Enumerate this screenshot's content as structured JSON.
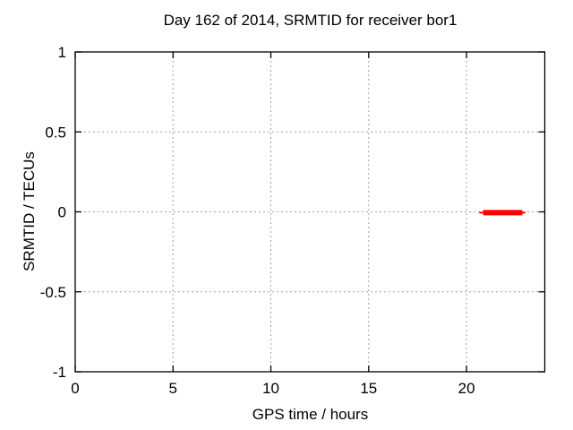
{
  "page": {
    "background_color": "#ffffff",
    "text_color": "#000000"
  },
  "chart_data": {
    "type": "line",
    "title": "Day 162 of 2014, SRMTID for receiver bor1",
    "xlabel": "GPS time / hours",
    "ylabel": "SRMTID / TECUs",
    "xlim": [
      0,
      24
    ],
    "ylim": [
      -1,
      1
    ],
    "xticks": [
      0,
      5,
      10,
      15,
      20
    ],
    "xtick_labels": [
      "0",
      "5",
      "10",
      "15",
      "20"
    ],
    "yticks": [
      -1,
      -0.5,
      0,
      0.5,
      1
    ],
    "ytick_labels": [
      "-1",
      "-0.5",
      "0",
      "0.5",
      "1"
    ],
    "grid": true,
    "grid_color": "#a0a0a0",
    "axis_color": "#000000",
    "legend": "none",
    "series": [
      {
        "name": "SRMTID",
        "color": "#ff0000",
        "description": "short horizontal red trace near zero TECUs late in the day",
        "y": -0.005,
        "segments": [
          {
            "x_start": 20.65,
            "x_end": 23.0,
            "y": -0.005,
            "linewidth": 2
          },
          {
            "x_start": 20.85,
            "x_end": 22.85,
            "y": -0.005,
            "linewidth": 6
          }
        ]
      }
    ]
  }
}
